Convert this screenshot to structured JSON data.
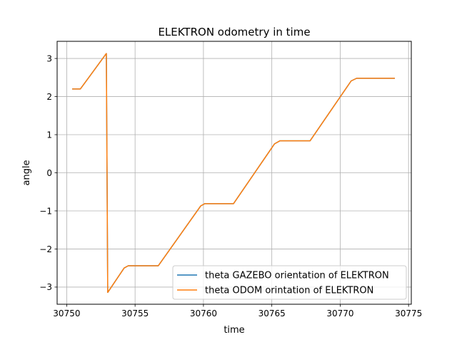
{
  "chart_data": {
    "type": "line",
    "title": "ELEKTRON odometry in time",
    "xlabel": "time",
    "ylabel": "angle",
    "xlim": [
      30749.3,
      30775.2
    ],
    "ylim": [
      -3.45,
      3.45
    ],
    "xticks": [
      30750,
      30755,
      30760,
      30765,
      30770,
      30775
    ],
    "yticks": [
      -3,
      -2,
      -1,
      0,
      1,
      2,
      3
    ],
    "xtick_labels": [
      "30750",
      "30755",
      "30760",
      "30765",
      "30770",
      "30775"
    ],
    "ytick_labels": [
      "−3",
      "−2",
      "−1",
      "0",
      "1",
      "2",
      "3"
    ],
    "grid": true,
    "legend_position": "lower right",
    "series": [
      {
        "name": "theta GAZEBO orientation of ELEKTRON",
        "color": "#1f77b4",
        "x": [
          30750.4,
          30751.0,
          30752.9,
          30752.9,
          30753.0,
          30754.2,
          30754.5,
          30756.7,
          30759.8,
          30760.1,
          30762.2,
          30765.2,
          30765.6,
          30767.8,
          30770.8,
          30771.2,
          30774.0
        ],
        "y": [
          2.2,
          2.2,
          3.13,
          3.13,
          -3.14,
          -2.5,
          -2.44,
          -2.44,
          -0.87,
          -0.81,
          -0.81,
          0.76,
          0.84,
          0.84,
          2.41,
          2.48,
          2.48
        ]
      },
      {
        "name": "theta ODOM orintation of ELEKTRON",
        "color": "#ff7f0e",
        "x": [
          30750.4,
          30751.0,
          30752.9,
          30752.9,
          30753.0,
          30754.2,
          30754.5,
          30756.7,
          30759.8,
          30760.1,
          30762.2,
          30765.2,
          30765.6,
          30767.8,
          30770.8,
          30771.2,
          30774.0
        ],
        "y": [
          2.2,
          2.2,
          3.13,
          3.13,
          -3.14,
          -2.5,
          -2.44,
          -2.44,
          -0.87,
          -0.81,
          -0.81,
          0.76,
          0.84,
          0.84,
          2.41,
          2.48,
          2.48
        ]
      }
    ]
  }
}
